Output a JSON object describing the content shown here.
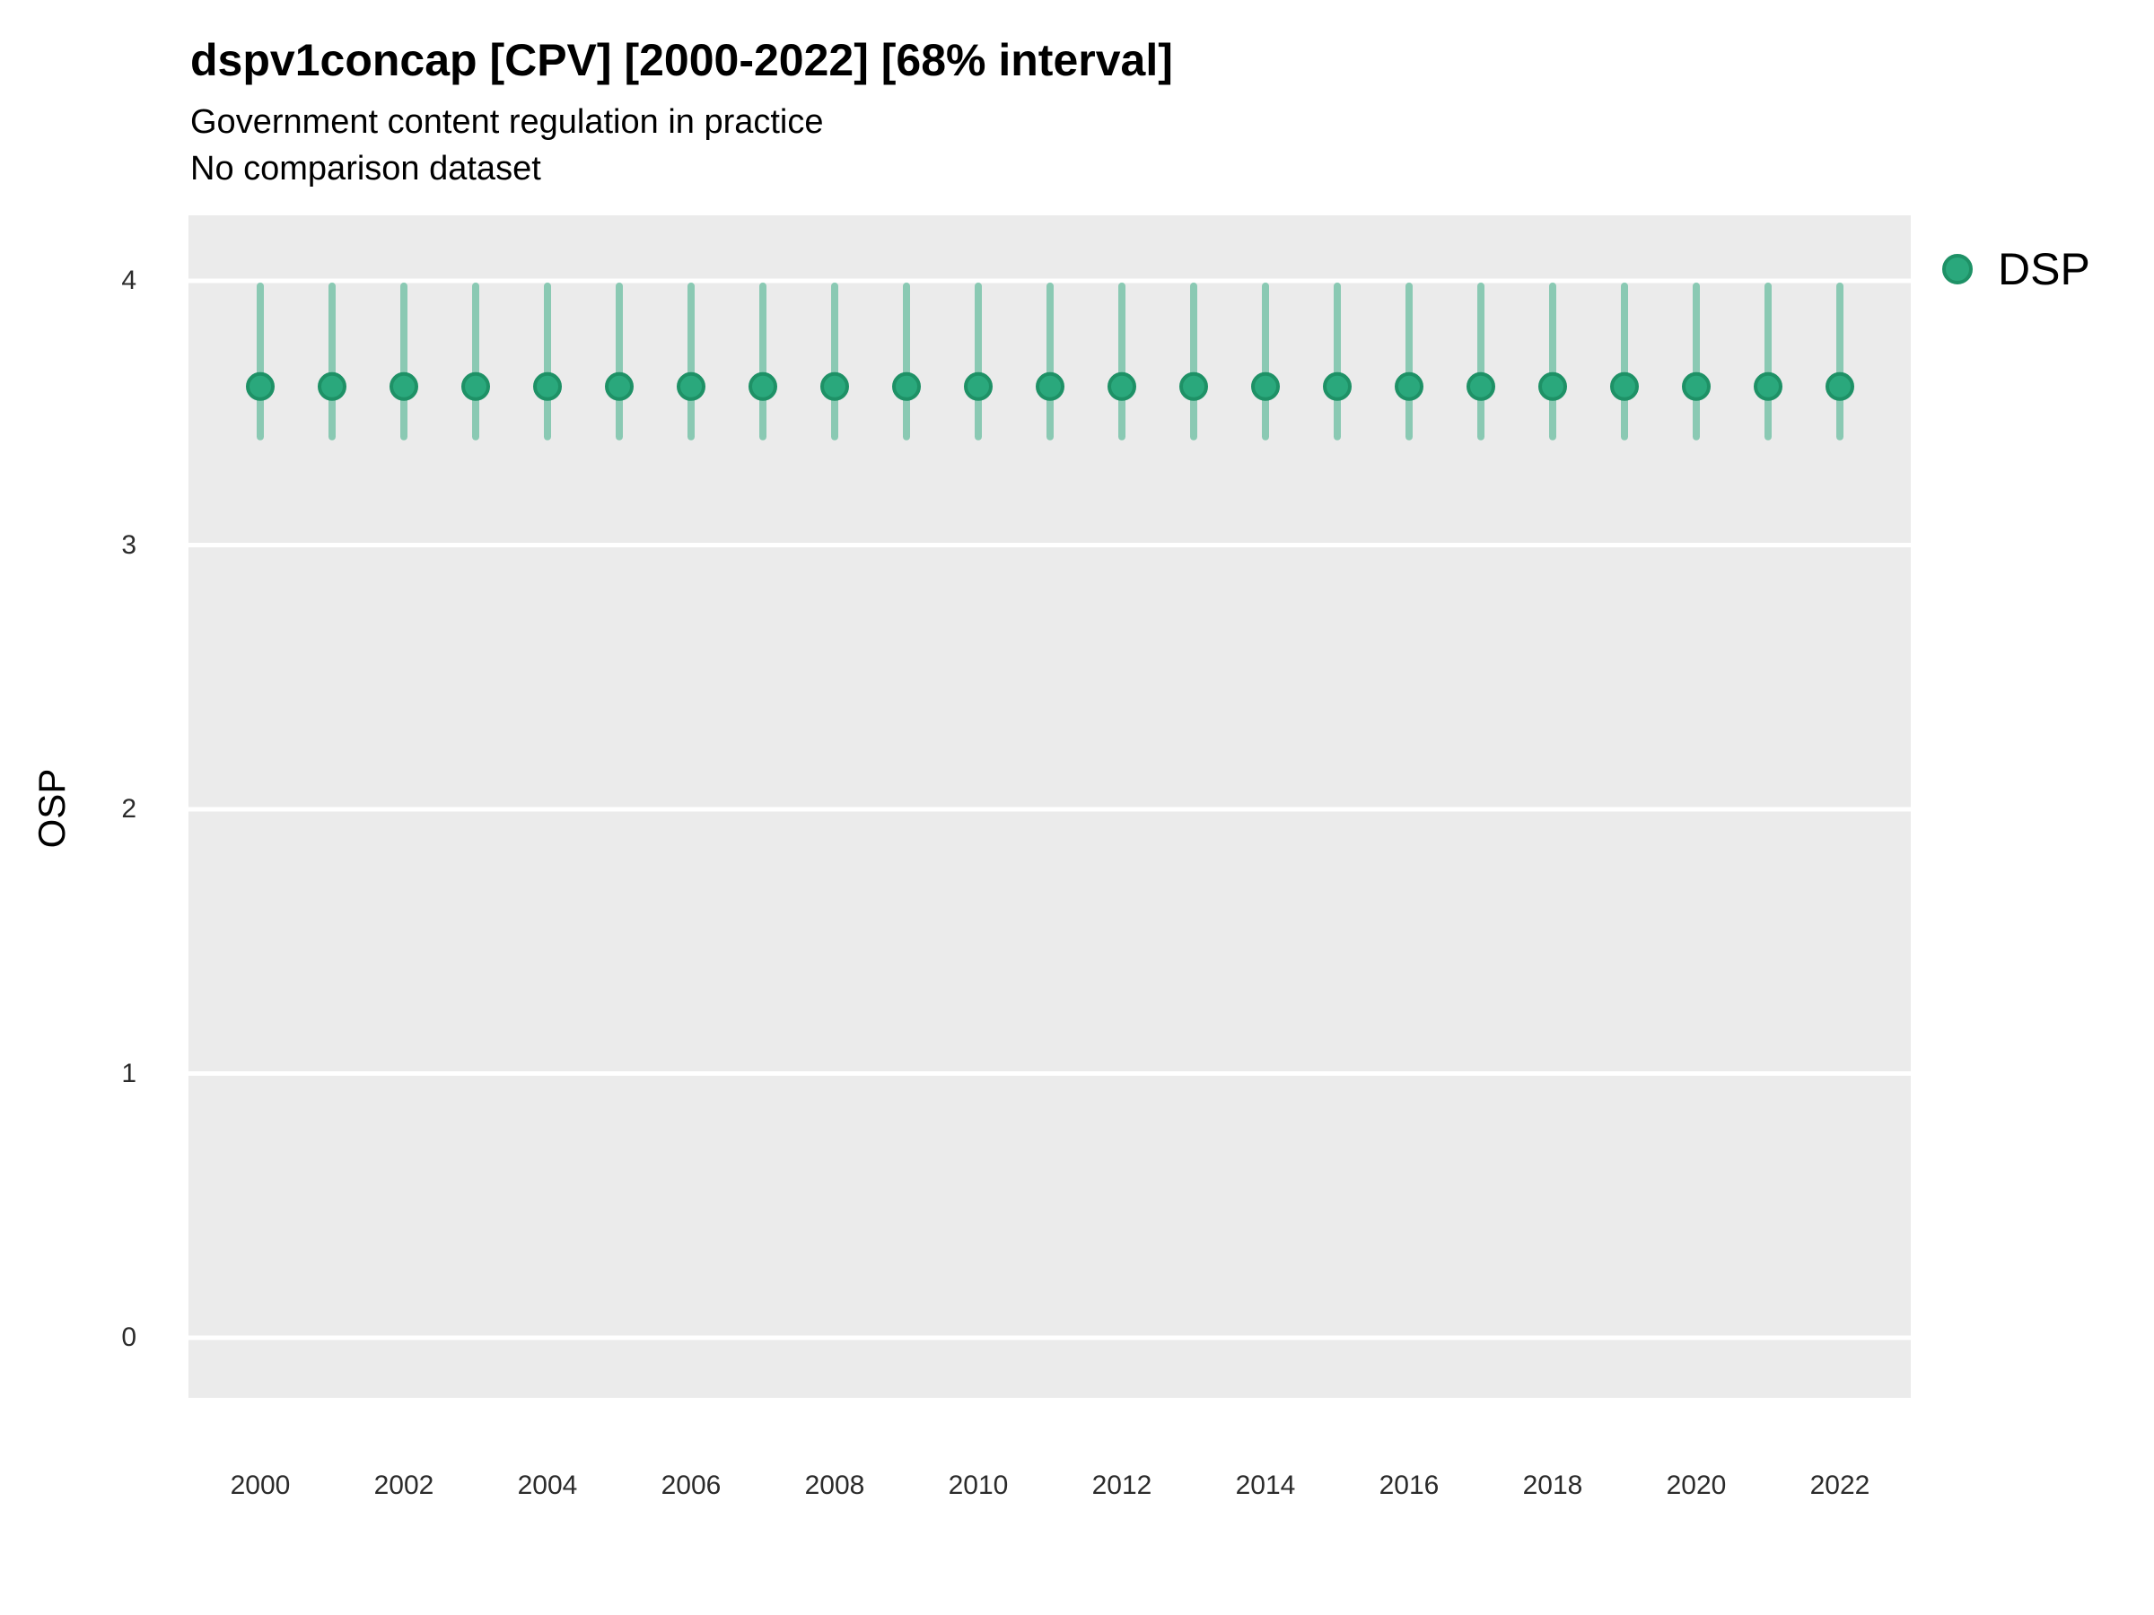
{
  "header": {
    "title": "dspv1concap [CPV] [2000-2022] [68% interval]",
    "subtitle1": "Government content regulation in practice",
    "subtitle2": "No comparison dataset"
  },
  "legend": {
    "items": [
      {
        "label": "DSP",
        "color": "#2aa87c"
      }
    ],
    "position": "right-top"
  },
  "axes": {
    "y_label": "OSP",
    "y_ticks": [
      4,
      3,
      2,
      1,
      0
    ],
    "x_ticks": [
      2000,
      2002,
      2004,
      2006,
      2008,
      2010,
      2012,
      2014,
      2016,
      2018,
      2020,
      2022
    ]
  },
  "colors": {
    "point_fill": "#2aa87c",
    "point_stroke": "#1e9166",
    "interval_color": "rgba(42,168,124,0.5)",
    "panel_bg": "#ebebeb",
    "gridline": "#ffffff",
    "text": "#000000",
    "tick_text": "#2b2b2b"
  },
  "chart_data": {
    "type": "scatter",
    "title": "dspv1concap [CPV] [2000-2022] [68% interval]",
    "subtitle": "Government content regulation in practice",
    "note": "No comparison dataset",
    "xlabel": "",
    "ylabel": "OSP",
    "ylim": [
      -0.25,
      4.25
    ],
    "interval": "68%",
    "grid": "horizontal-white-on-gray",
    "legend_position": "right",
    "x": [
      2000,
      2001,
      2002,
      2003,
      2004,
      2005,
      2006,
      2007,
      2008,
      2009,
      2010,
      2011,
      2012,
      2013,
      2014,
      2015,
      2016,
      2017,
      2018,
      2019,
      2020,
      2021,
      2022
    ],
    "series": [
      {
        "name": "DSP",
        "estimate": [
          3.6,
          3.6,
          3.6,
          3.6,
          3.6,
          3.6,
          3.6,
          3.6,
          3.6,
          3.6,
          3.6,
          3.6,
          3.6,
          3.6,
          3.6,
          3.6,
          3.6,
          3.6,
          3.6,
          3.6,
          3.6,
          3.6,
          3.6
        ],
        "lower_68": [
          3.41,
          3.41,
          3.41,
          3.41,
          3.41,
          3.41,
          3.41,
          3.41,
          3.41,
          3.41,
          3.41,
          3.41,
          3.41,
          3.41,
          3.41,
          3.41,
          3.41,
          3.41,
          3.41,
          3.41,
          3.41,
          3.41,
          3.41
        ],
        "upper_68": [
          3.98,
          3.98,
          3.98,
          3.98,
          3.98,
          3.98,
          3.98,
          3.98,
          3.98,
          3.98,
          3.98,
          3.98,
          3.98,
          3.98,
          3.98,
          3.98,
          3.98,
          3.98,
          3.98,
          3.98,
          3.98,
          3.98,
          3.98
        ]
      }
    ]
  }
}
